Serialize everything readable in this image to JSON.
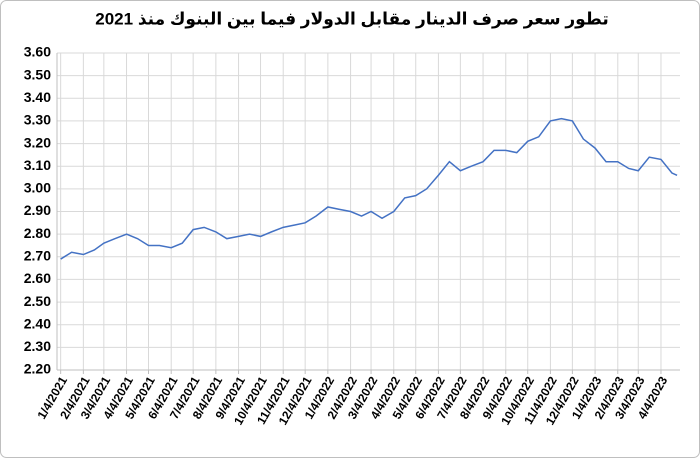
{
  "chart_data": {
    "type": "line",
    "title": "تطور سعر صرف الدينار مقابل الدولار فيما بين البنوك منذ 2021",
    "color": "#4472c4",
    "grid": true,
    "x": [
      "1/4/2021",
      "1/19/2021",
      "2/4/2021",
      "2/19/2021",
      "3/4/2021",
      "3/19/2021",
      "4/4/2021",
      "4/19/2021",
      "5/4/2021",
      "5/19/2021",
      "6/4/2021",
      "6/19/2021",
      "7/4/2021",
      "7/19/2021",
      "8/4/2021",
      "8/19/2021",
      "9/4/2021",
      "9/19/2021",
      "10/4/2021",
      "10/19/2021",
      "11/4/2021",
      "11/19/2021",
      "12/4/2021",
      "12/19/2021",
      "1/4/2022",
      "1/19/2022",
      "2/4/2022",
      "2/19/2022",
      "3/4/2022",
      "3/19/2022",
      "4/4/2022",
      "4/19/2022",
      "5/4/2022",
      "5/19/2022",
      "6/4/2022",
      "6/19/2022",
      "7/4/2022",
      "7/19/2022",
      "8/4/2022",
      "8/19/2022",
      "9/4/2022",
      "9/19/2022",
      "10/4/2022",
      "10/19/2022",
      "11/4/2022",
      "11/19/2022",
      "12/4/2022",
      "12/19/2022",
      "1/4/2023",
      "1/19/2023",
      "2/4/2023",
      "2/19/2023",
      "3/4/2023",
      "3/19/2023",
      "4/4/2023",
      "4/19/2023",
      "4/26/2023"
    ],
    "values": [
      2.69,
      2.72,
      2.71,
      2.73,
      2.76,
      2.78,
      2.8,
      2.78,
      2.75,
      2.75,
      2.74,
      2.76,
      2.82,
      2.83,
      2.81,
      2.78,
      2.79,
      2.8,
      2.79,
      2.81,
      2.83,
      2.84,
      2.85,
      2.88,
      2.92,
      2.91,
      2.9,
      2.88,
      2.9,
      2.87,
      2.9,
      2.96,
      2.97,
      3.0,
      3.06,
      3.12,
      3.08,
      3.1,
      3.12,
      3.17,
      3.17,
      3.16,
      3.21,
      3.23,
      3.3,
      3.31,
      3.3,
      3.22,
      3.18,
      3.12,
      3.12,
      3.09,
      3.08,
      3.14,
      3.13,
      3.07,
      3.06
    ],
    "xlim": [
      "12/30/2020",
      "4/30/2023"
    ],
    "xticks": [
      "1/4/2021",
      "2/4/2021",
      "3/4/2021",
      "4/4/2021",
      "5/4/2021",
      "6/4/2021",
      "7/4/2021",
      "8/4/2021",
      "9/4/2021",
      "10/4/2021",
      "11/4/2021",
      "12/4/2021",
      "1/4/2022",
      "2/4/2022",
      "3/4/2022",
      "4/4/2022",
      "5/4/2022",
      "6/4/2022",
      "7/4/2022",
      "8/4/2022",
      "9/4/2022",
      "10/4/2022",
      "11/4/2022",
      "12/4/2022",
      "1/4/2023",
      "2/4/2023",
      "3/4/2023",
      "4/4/2023"
    ],
    "ylim": [
      2.2,
      3.6
    ],
    "yticks": [
      {
        "value": 2.2,
        "label": "2.20"
      },
      {
        "value": 2.3,
        "label": "2.30"
      },
      {
        "value": 2.4,
        "label": "2.40"
      },
      {
        "value": 2.5,
        "label": "2.50"
      },
      {
        "value": 2.6,
        "label": "2.60"
      },
      {
        "value": 2.7,
        "label": "2.70"
      },
      {
        "value": 2.8,
        "label": "2.80"
      },
      {
        "value": 2.9,
        "label": "2.90"
      },
      {
        "value": 3.0,
        "label": "3.00"
      },
      {
        "value": 3.1,
        "label": "3.10"
      },
      {
        "value": 3.2,
        "label": "3.20"
      },
      {
        "value": 3.3,
        "label": "3.30"
      },
      {
        "value": 3.4,
        "label": "3.40"
      },
      {
        "value": 3.5,
        "label": "3.50"
      },
      {
        "value": 3.6,
        "label": "3.60"
      }
    ]
  }
}
